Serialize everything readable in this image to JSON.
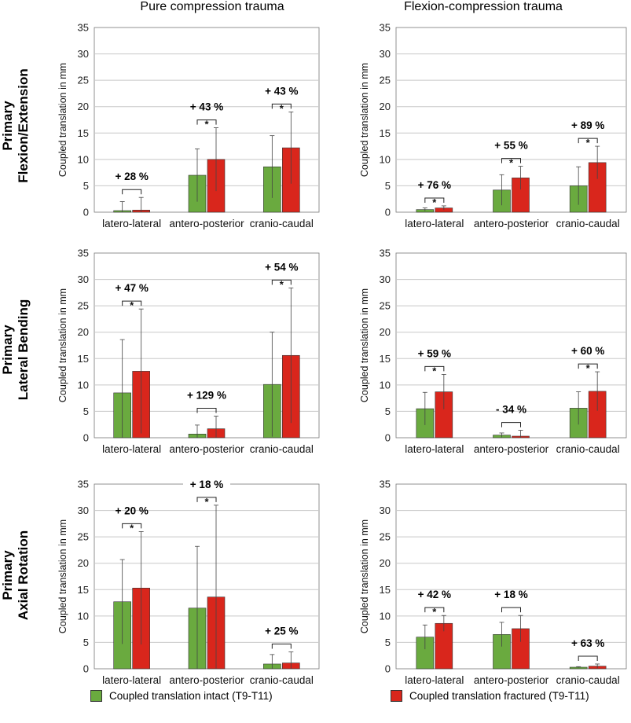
{
  "column_titles": [
    "Pure compression trauma",
    "Flexion-compression trauma"
  ],
  "row_titles": [
    {
      "line1": "Primary",
      "line2": "Flexion/Extension"
    },
    {
      "line1": "Primary",
      "line2": "Lateral Bending"
    },
    {
      "line1": "Primary",
      "line2": "Axial Rotation"
    }
  ],
  "legend": {
    "intact": "Coupled translation intact (T9-T11)",
    "fractured": "Coupled translation fractured (T9-T11)"
  },
  "colors": {
    "intact": "#6aaa3f",
    "fractured": "#d9261c",
    "grid": "#c8c8c8",
    "axis": "#777777"
  },
  "chart_data": [
    {
      "type": "bar",
      "row": 0,
      "col": 0,
      "ylabel": "Coupled translation in mm",
      "ylim": [
        0,
        35
      ],
      "ticks": [
        0,
        5,
        10,
        15,
        20,
        25,
        30,
        35
      ],
      "categories": [
        "latero-lateral",
        "antero-posterior",
        "cranio-caudal"
      ],
      "series": [
        {
          "name": "intact",
          "values": [
            0.3,
            7.0,
            8.6
          ],
          "errors": [
            1.7,
            5.0,
            5.9
          ]
        },
        {
          "name": "fractured",
          "values": [
            0.4,
            10.0,
            12.2
          ],
          "errors": [
            2.4,
            6.0,
            6.8
          ]
        }
      ],
      "annotations": [
        {
          "text": "+ 28 %",
          "star": false
        },
        {
          "text": "+ 43 %",
          "star": true
        },
        {
          "text": "+ 43 %",
          "star": true
        }
      ]
    },
    {
      "type": "bar",
      "row": 0,
      "col": 1,
      "ylabel": "Coupled translation in mm",
      "ylim": [
        0,
        35
      ],
      "ticks": [
        0,
        5,
        10,
        15,
        20,
        25,
        30,
        35
      ],
      "categories": [
        "latero-lateral",
        "antero-posterior",
        "cranio-caudal"
      ],
      "series": [
        {
          "name": "intact",
          "values": [
            0.5,
            4.2,
            5.0
          ],
          "errors": [
            0.3,
            2.9,
            3.6
          ]
        },
        {
          "name": "fractured",
          "values": [
            0.8,
            6.5,
            9.4
          ],
          "errors": [
            0.4,
            2.2,
            3.1
          ]
        }
      ],
      "annotations": [
        {
          "text": "+ 76 %",
          "star": true
        },
        {
          "text": "+ 55 %",
          "star": true
        },
        {
          "text": "+ 89 %",
          "star": true
        }
      ]
    },
    {
      "type": "bar",
      "row": 1,
      "col": 0,
      "ylabel": "Coupled translation in mm",
      "ylim": [
        0,
        35
      ],
      "ticks": [
        0,
        5,
        10,
        15,
        20,
        25,
        30,
        35
      ],
      "categories": [
        "latero-lateral",
        "antero-posterior",
        "cranio-caudal"
      ],
      "series": [
        {
          "name": "intact",
          "values": [
            8.5,
            0.7,
            10.1
          ],
          "errors": [
            10.1,
            1.7,
            9.9
          ]
        },
        {
          "name": "fractured",
          "values": [
            12.6,
            1.7,
            15.6
          ],
          "errors": [
            11.8,
            2.4,
            12.8
          ]
        }
      ],
      "annotations": [
        {
          "text": "+ 47 %",
          "star": true
        },
        {
          "text": "+ 129 %",
          "star": false
        },
        {
          "text": "+ 54 %",
          "star": true
        }
      ]
    },
    {
      "type": "bar",
      "row": 1,
      "col": 1,
      "ylabel": "Coupled translation in mm",
      "ylim": [
        0,
        35
      ],
      "ticks": [
        0,
        5,
        10,
        15,
        20,
        25,
        30,
        35
      ],
      "categories": [
        "latero-lateral",
        "antero-posterior",
        "cranio-caudal"
      ],
      "series": [
        {
          "name": "intact",
          "values": [
            5.5,
            0.5,
            5.6
          ],
          "errors": [
            3.1,
            0.4,
            3.1
          ]
        },
        {
          "name": "fractured",
          "values": [
            8.7,
            0.3,
            8.8
          ],
          "errors": [
            3.3,
            1.1,
            3.7
          ]
        }
      ],
      "annotations": [
        {
          "text": "+ 59 %",
          "star": true
        },
        {
          "text": "- 34 %",
          "star": false
        },
        {
          "text": "+ 60 %",
          "star": true
        }
      ]
    },
    {
      "type": "bar",
      "row": 2,
      "col": 0,
      "ylabel": "Coupled translation in mm",
      "ylim": [
        0,
        35
      ],
      "ticks": [
        0,
        5,
        10,
        15,
        20,
        25,
        30,
        35
      ],
      "categories": [
        "latero-lateral",
        "antero-posterior",
        "cranio-caudal"
      ],
      "series": [
        {
          "name": "intact",
          "values": [
            12.7,
            11.5,
            0.9
          ],
          "errors": [
            8.0,
            11.7,
            1.8
          ]
        },
        {
          "name": "fractured",
          "values": [
            15.3,
            13.6,
            1.1
          ],
          "errors": [
            10.7,
            17.4,
            2.1
          ]
        }
      ],
      "annotations": [
        {
          "text": "+ 20 %",
          "star": true
        },
        {
          "text": "+ 18 %",
          "star": true
        },
        {
          "text": "+ 25 %",
          "star": false
        }
      ]
    },
    {
      "type": "bar",
      "row": 2,
      "col": 1,
      "ylabel": "Coupled translation in mm",
      "ylim": [
        0,
        35
      ],
      "ticks": [
        0,
        5,
        10,
        15,
        20,
        25,
        30,
        35
      ],
      "categories": [
        "latero-lateral",
        "antero-posterior",
        "cranio-caudal"
      ],
      "series": [
        {
          "name": "intact",
          "values": [
            6.0,
            6.5,
            0.3
          ],
          "errors": [
            2.3,
            2.3,
            0.1
          ]
        },
        {
          "name": "fractured",
          "values": [
            8.6,
            7.6,
            0.5
          ],
          "errors": [
            1.5,
            2.5,
            0.4
          ]
        }
      ],
      "annotations": [
        {
          "text": "+ 42 %",
          "star": true
        },
        {
          "text": "+ 18 %",
          "star": false
        },
        {
          "text": "+ 63 %",
          "star": false
        }
      ]
    }
  ]
}
